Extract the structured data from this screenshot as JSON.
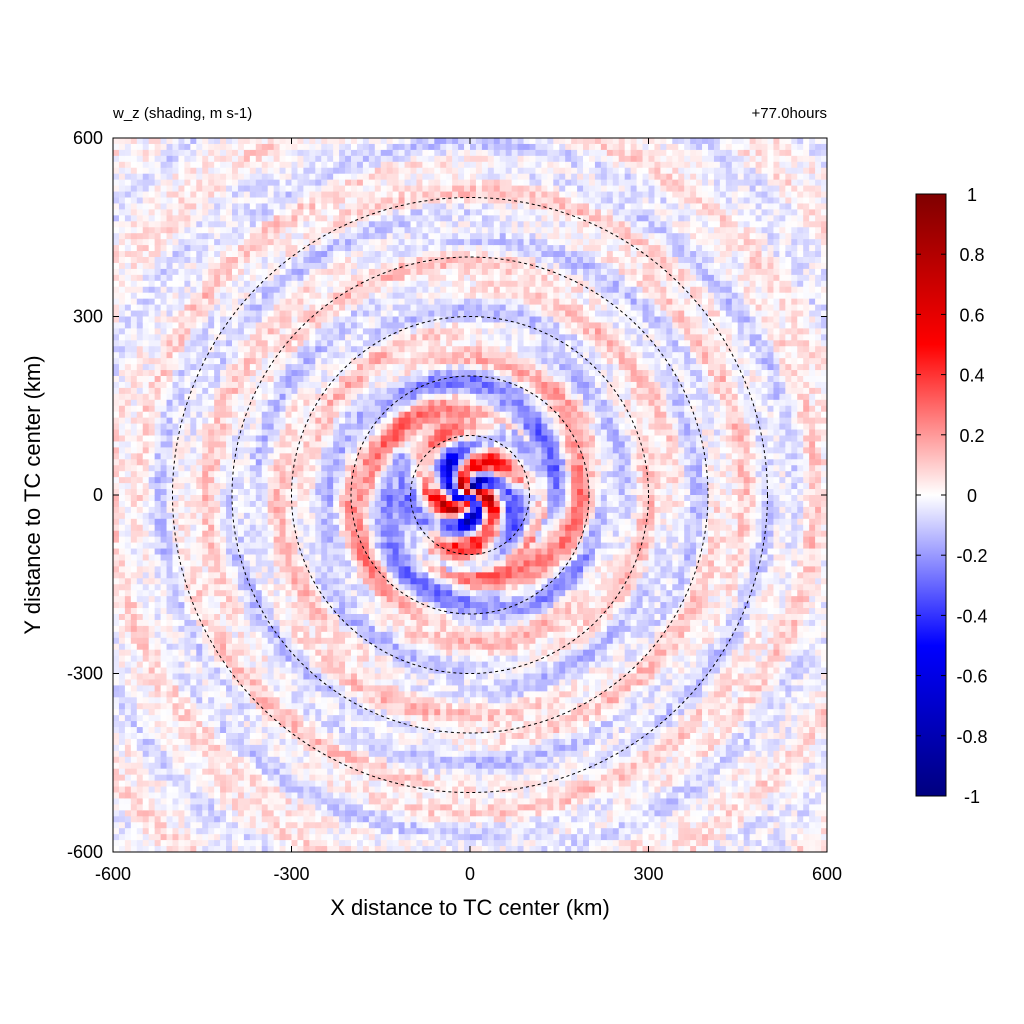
{
  "chart_data": {
    "type": "heatmap",
    "title_left": "w_z (shading, m s-1)",
    "title_right": "+77.0hours",
    "xlabel": "X distance to TC center (km)",
    "ylabel": "Y distance to TC center (km)",
    "xlim": [
      -600,
      600
    ],
    "ylim": [
      -600,
      600
    ],
    "x_ticks": [
      -600,
      -300,
      0,
      300,
      600
    ],
    "y_ticks": [
      -600,
      -300,
      0,
      300,
      600
    ],
    "x_tick_labels": [
      "-600",
      "-300",
      "0",
      "300",
      "600"
    ],
    "y_tick_labels": [
      "-600",
      "-300",
      "0",
      "300",
      "600"
    ],
    "range_rings_km": [
      100,
      200,
      300,
      400,
      500
    ],
    "colorbar": {
      "min": -1,
      "max": 1,
      "ticks": [
        1,
        0.8,
        0.6,
        0.4,
        0.2,
        0,
        -0.2,
        -0.4,
        -0.6,
        -0.8,
        -1
      ],
      "tick_labels": [
        "1",
        "0.8",
        "0.6",
        "0.4",
        "0.2",
        "0",
        "-0.2",
        "-0.4",
        "-0.6",
        "-0.8",
        "-1"
      ],
      "colors": [
        "#00007f",
        "#0000ff",
        "#ffffff",
        "#ff0000",
        "#7f0000"
      ]
    },
    "features": {
      "inner_core_max_abs": 1.0,
      "spiral_band_amplitude": 0.15,
      "background_noise_amplitude": 0.08
    }
  }
}
